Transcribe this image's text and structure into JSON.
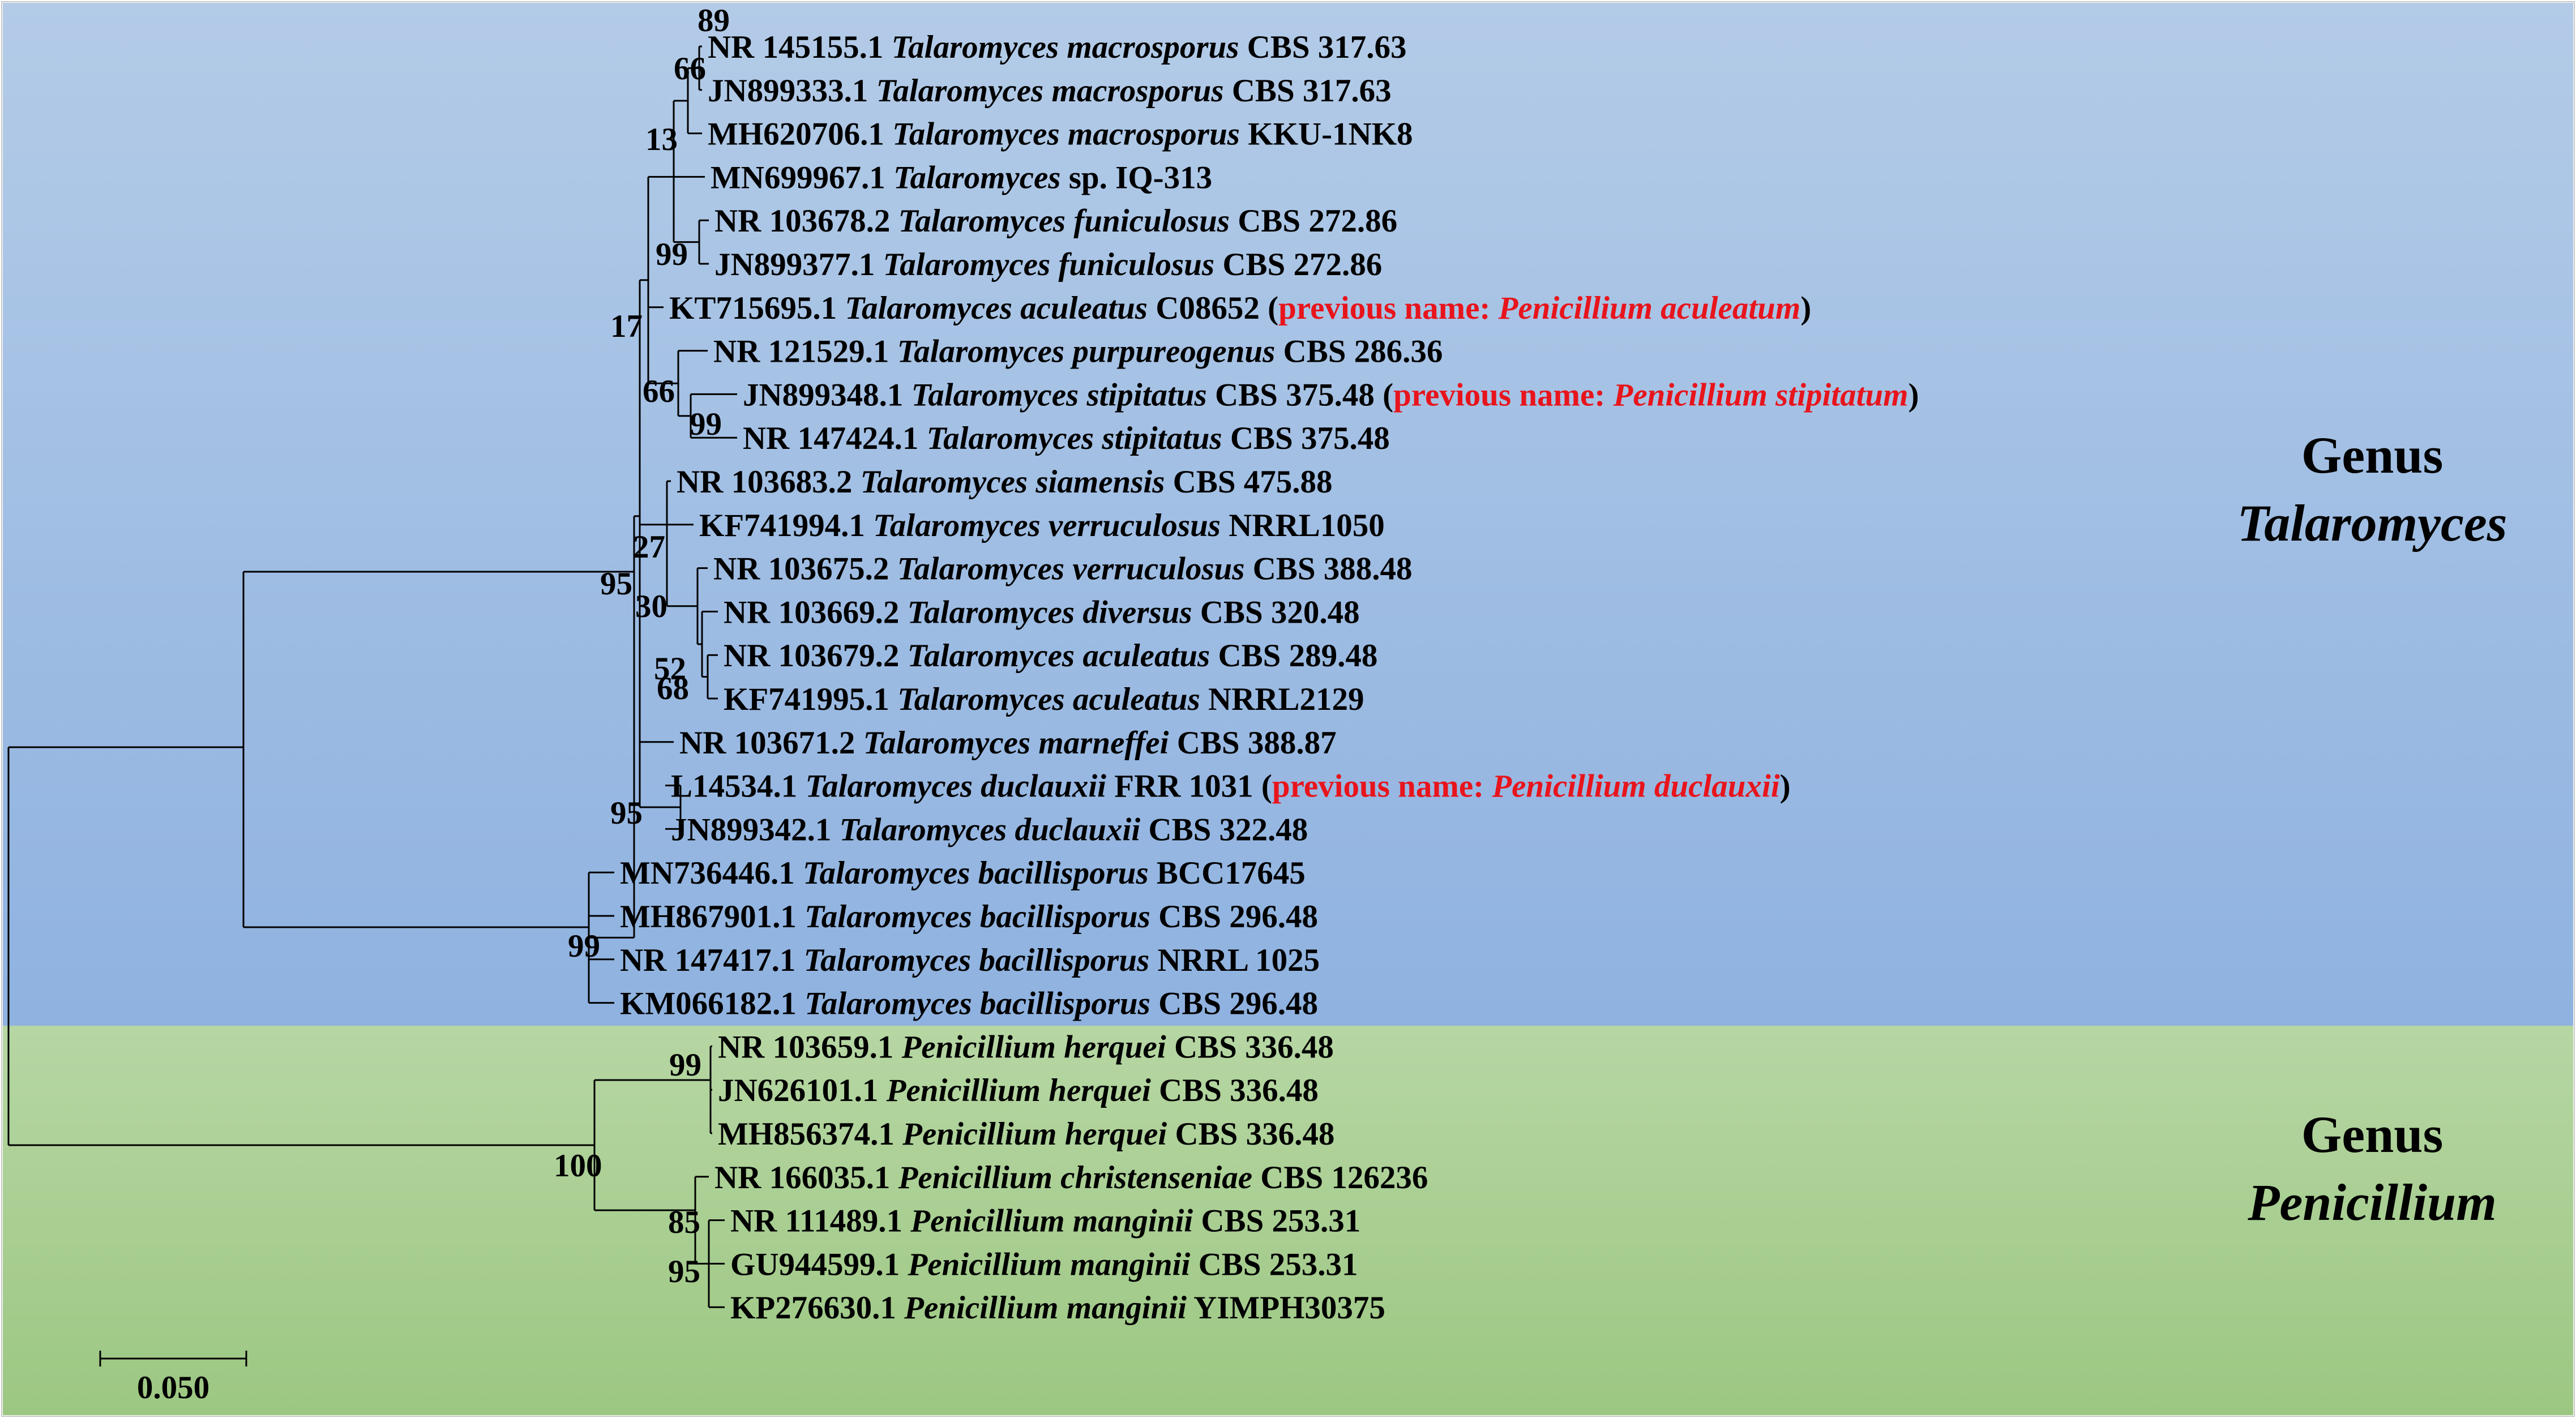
{
  "colors": {
    "talaromyces_top": "#b3cbe7",
    "talaromyces_bottom": "#8fb2e0",
    "penicillium_top": "#b6d6a3",
    "penicillium_bottom": "#9cc782",
    "note": "#e8141c",
    "line": "#000000"
  },
  "clades": {
    "talaromyces": {
      "line1": "Genus",
      "line2": "Talaromyces"
    },
    "penicillium": {
      "line1": "Genus",
      "line2": "Penicillium"
    }
  },
  "scale_bar": {
    "label": "0.050",
    "value": 0.05
  },
  "leaves": [
    {
      "acc": "NR 145155.1",
      "genus": "Talaromyces",
      "epithet": "macrosporus",
      "strain": "CBS 317.63"
    },
    {
      "acc": "JN899333.1",
      "genus": "Talaromyces",
      "epithet": "macrosporus",
      "strain": "CBS 317.63"
    },
    {
      "acc": "MH620706.1",
      "genus": "Talaromyces",
      "epithet": "macrosporus",
      "strain": "KKU-1NK8"
    },
    {
      "acc": "MN699967.1",
      "genus": "Talaromyces",
      "epithet": "",
      "strain": "sp.  IQ-313"
    },
    {
      "acc": "NR 103678.2",
      "genus": "Talaromyces",
      "epithet": "funiculosus",
      "strain": "CBS 272.86"
    },
    {
      "acc": "JN899377.1",
      "genus": "Talaromyces",
      "epithet": "funiculosus",
      "strain": "CBS 272.86"
    },
    {
      "acc": "KT715695.1",
      "genus": "Talaromyces",
      "epithet": "aculeatus",
      "strain": "C08652",
      "note": {
        "prefix": "previous name: ",
        "name": "Penicillium aculeatum"
      }
    },
    {
      "acc": "NR 121529.1",
      "genus": "Talaromyces",
      "epithet": "purpureogenus",
      "strain": "CBS 286.36"
    },
    {
      "acc": "JN899348.1",
      "genus": "Talaromyces",
      "epithet": "stipitatus",
      "strain": "CBS 375.48",
      "note": {
        "prefix": "previous name: ",
        "name": "Penicillium stipitatum"
      }
    },
    {
      "acc": "NR 147424.1",
      "genus": "Talaromyces",
      "epithet": "stipitatus",
      "strain": "CBS 375.48"
    },
    {
      "acc": "NR 103683.2",
      "genus": "Talaromyces",
      "epithet": "siamensis",
      "strain": "CBS 475.88"
    },
    {
      "acc": "KF741994.1",
      "genus": "Talaromyces",
      "epithet": "verruculosus",
      "strain": "NRRL1050"
    },
    {
      "acc": "NR 103675.2",
      "genus": "Talaromyces",
      "epithet": "verruculosus",
      "strain": "CBS 388.48"
    },
    {
      "acc": "NR 103669.2",
      "genus": "Talaromyces",
      "epithet": "diversus",
      "strain": "CBS 320.48"
    },
    {
      "acc": "NR 103679.2",
      "genus": "Talaromyces",
      "epithet": "aculeatus",
      "strain": "CBS 289.48"
    },
    {
      "acc": "KF741995.1",
      "genus": "Talaromyces",
      "epithet": "aculeatus",
      "strain": "NRRL2129"
    },
    {
      "acc": "NR 103671.2",
      "genus": "Talaromyces",
      "epithet": "marneffei",
      "strain": "CBS 388.87"
    },
    {
      "acc": "L14534.1",
      "genus": "Talaromyces",
      "epithet": "duclauxii",
      "strain": "FRR 1031",
      "note": {
        "prefix": "previous name: ",
        "name": "Penicillium duclauxii"
      }
    },
    {
      "acc": "JN899342.1",
      "genus": "Talaromyces",
      "epithet": "duclauxii",
      "strain": "CBS 322.48"
    },
    {
      "acc": "MN736446.1",
      "genus": "Talaromyces",
      "epithet": "bacillisporus",
      "strain": "BCC17645"
    },
    {
      "acc": "MH867901.1",
      "genus": "Talaromyces",
      "epithet": "bacillisporus",
      "strain": "CBS 296.48"
    },
    {
      "acc": "NR 147417.1",
      "genus": "Talaromyces",
      "epithet": "bacillisporus",
      "strain": "NRRL 1025"
    },
    {
      "acc": "KM066182.1",
      "genus": "Talaromyces",
      "epithet": "bacillisporus",
      "strain": "CBS 296.48"
    },
    {
      "acc": "NR 103659.1",
      "genus": "Penicillium",
      "epithet": "herquei",
      "strain": "CBS 336.48"
    },
    {
      "acc": "JN626101.1",
      "genus": "Penicillium",
      "epithet": "herquei",
      "strain": "CBS 336.48"
    },
    {
      "acc": "MH856374.1",
      "genus": "Penicillium",
      "epithet": "herquei",
      "strain": "CBS 336.48"
    },
    {
      "acc": "NR 166035.1",
      "genus": "Penicillium",
      "epithet": "christenseniae",
      "strain": "CBS 126236"
    },
    {
      "acc": "NR 111489.1",
      "genus": "Penicillium",
      "epithet": "manginii",
      "strain": "CBS 253.31"
    },
    {
      "acc": "GU944599.1",
      "genus": "Penicillium",
      "epithet": "manginii",
      "strain": "CBS 253.31"
    },
    {
      "acc": "KP276630.1",
      "genus": "Penicillium",
      "epithet": "manginii",
      "strain": "YIMPH30375"
    }
  ],
  "bootstrap": [
    "89",
    "66",
    "13",
    "99",
    "17",
    "66",
    "99",
    "27",
    "95",
    "30",
    "52",
    "68",
    "95",
    "99",
    "99",
    "100",
    "85",
    "95"
  ]
}
